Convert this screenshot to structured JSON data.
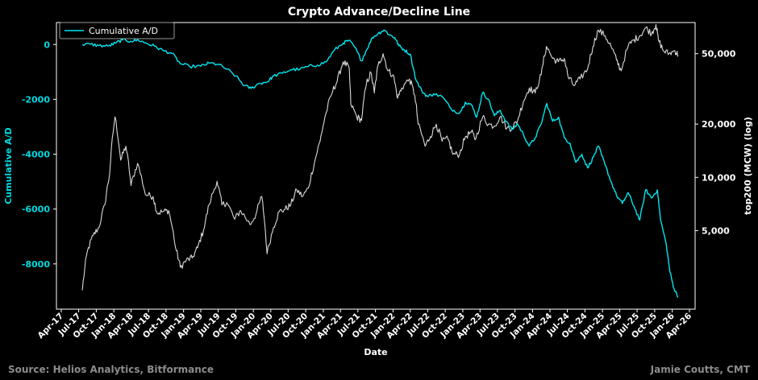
{
  "chart_data": {
    "type": "line",
    "title": "Crypto Advance/Decline Line",
    "xlabel": "Date",
    "ylabel_left": "Cumulative A/D",
    "ylabel_right": "top200 (MCW) (log)",
    "x_ticks": [
      "Apr-17",
      "Jul-17",
      "Oct-17",
      "Jan-18",
      "Apr-18",
      "Jul-18",
      "Oct-18",
      "Jan-19",
      "Apr-19",
      "Jul-19",
      "Oct-19",
      "Jan-20",
      "Apr-20",
      "Jul-20",
      "Oct-20",
      "Jan-21",
      "Apr-21",
      "Jul-21",
      "Oct-21",
      "Jan-22",
      "Apr-22",
      "Jul-22",
      "Oct-22",
      "Jan-23",
      "Apr-23",
      "Jul-23",
      "Oct-23",
      "Jan-24",
      "Apr-24",
      "Jul-24",
      "Oct-24",
      "Jan-25",
      "Apr-25",
      "Jul-25",
      "Oct-25",
      "Jan-26",
      "Apr-26"
    ],
    "y_left_ticks": [
      "0",
      "-2000",
      "-4000",
      "-6000",
      "-8000"
    ],
    "y_left_tick_values": [
      0,
      -2000,
      -4000,
      -6000,
      -8000
    ],
    "y_left_range": [
      -9650,
      800
    ],
    "y_right_ticks": [
      "50,000",
      "20,000",
      "10,000",
      "5,000"
    ],
    "y_right_tick_values": [
      50000,
      20000,
      10000,
      5000
    ],
    "y_right_range": [
      1800,
      75000
    ],
    "y_right_scale": "log",
    "grid": false,
    "legend": "top-left",
    "colors": {
      "background": "#000000",
      "ad_line": "#00e5ee",
      "index_line": "#d9d9d9",
      "left_axis_text": "#00d8e0",
      "text": "#ffffff",
      "footer": "#8c8c8c"
    },
    "series": [
      {
        "name": "Cumulative A/D",
        "axis": "left",
        "points": [
          [
            "2017-07-20",
            0
          ],
          [
            "2017-09-01",
            10
          ],
          [
            "2017-10-15",
            -40
          ],
          [
            "2017-12-01",
            -60
          ],
          [
            "2018-01-10",
            50
          ],
          [
            "2018-02-15",
            170
          ],
          [
            "2018-04-01",
            120
          ],
          [
            "2018-05-10",
            160
          ],
          [
            "2018-06-15",
            60
          ],
          [
            "2018-08-01",
            -60
          ],
          [
            "2018-09-15",
            -220
          ],
          [
            "2018-11-01",
            -320
          ],
          [
            "2018-12-15",
            -700
          ],
          [
            "2019-02-01",
            -800
          ],
          [
            "2019-04-01",
            -790
          ],
          [
            "2019-05-15",
            -680
          ],
          [
            "2019-07-01",
            -720
          ],
          [
            "2019-08-15",
            -900
          ],
          [
            "2019-10-01",
            -1150
          ],
          [
            "2019-11-15",
            -1500
          ],
          [
            "2019-12-20",
            -1600
          ],
          [
            "2020-02-01",
            -1420
          ],
          [
            "2020-03-15",
            -1360
          ],
          [
            "2020-04-15",
            -1150
          ],
          [
            "2020-06-01",
            -1050
          ],
          [
            "2020-07-15",
            -920
          ],
          [
            "2020-09-01",
            -900
          ],
          [
            "2020-10-15",
            -800
          ],
          [
            "2020-12-01",
            -750
          ],
          [
            "2021-01-15",
            -640
          ],
          [
            "2021-03-01",
            -200
          ],
          [
            "2021-04-15",
            50
          ],
          [
            "2021-05-15",
            150
          ],
          [
            "2021-06-15",
            -100
          ],
          [
            "2021-07-20",
            -600
          ],
          [
            "2021-08-15",
            -200
          ],
          [
            "2021-09-15",
            250
          ],
          [
            "2021-10-15",
            400
          ],
          [
            "2021-11-15",
            530
          ],
          [
            "2021-12-15",
            350
          ],
          [
            "2022-01-10",
            250
          ],
          [
            "2022-02-01",
            -50
          ],
          [
            "2022-03-01",
            -200
          ],
          [
            "2022-04-01",
            -350
          ],
          [
            "2022-05-01",
            -1300
          ],
          [
            "2022-06-01",
            -1700
          ],
          [
            "2022-07-01",
            -1900
          ],
          [
            "2022-08-01",
            -1800
          ],
          [
            "2022-09-15",
            -1900
          ],
          [
            "2022-11-01",
            -2350
          ],
          [
            "2022-12-15",
            -2500
          ],
          [
            "2023-01-15",
            -2100
          ],
          [
            "2023-02-15",
            -2200
          ],
          [
            "2023-03-15",
            -2650
          ],
          [
            "2023-04-15",
            -1750
          ],
          [
            "2023-05-15",
            -2000
          ],
          [
            "2023-06-15",
            -2600
          ],
          [
            "2023-07-15",
            -2400
          ],
          [
            "2023-08-15",
            -2800
          ],
          [
            "2023-09-15",
            -3100
          ],
          [
            "2023-10-15",
            -2900
          ],
          [
            "2023-11-15",
            -3300
          ],
          [
            "2023-12-15",
            -3700
          ],
          [
            "2024-01-15",
            -3400
          ],
          [
            "2024-02-15",
            -2900
          ],
          [
            "2024-03-15",
            -2150
          ],
          [
            "2024-04-15",
            -2800
          ],
          [
            "2024-05-15",
            -2650
          ],
          [
            "2024-06-15",
            -3400
          ],
          [
            "2024-07-15",
            -3600
          ],
          [
            "2024-08-15",
            -4300
          ],
          [
            "2024-09-15",
            -4000
          ],
          [
            "2024-10-15",
            -4500
          ],
          [
            "2024-11-15",
            -4100
          ],
          [
            "2024-12-10",
            -3700
          ],
          [
            "2025-01-15",
            -4400
          ],
          [
            "2025-02-15",
            -5000
          ],
          [
            "2025-03-15",
            -5500
          ],
          [
            "2025-04-15",
            -5800
          ],
          [
            "2025-05-15",
            -5400
          ],
          [
            "2025-06-15",
            -5900
          ],
          [
            "2025-07-15",
            -6400
          ],
          [
            "2025-08-15",
            -5300
          ],
          [
            "2025-09-15",
            -5600
          ],
          [
            "2025-10-15",
            -5300
          ],
          [
            "2025-11-01",
            -6400
          ],
          [
            "2025-12-01",
            -7300
          ],
          [
            "2025-12-20",
            -8300
          ],
          [
            "2026-01-10",
            -8900
          ],
          [
            "2026-02-01",
            -9200
          ]
        ]
      },
      {
        "axis": "right",
        "points": [
          [
            "2017-07-20",
            2300
          ],
          [
            "2017-08-15",
            3800
          ],
          [
            "2017-09-15",
            4700
          ],
          [
            "2017-10-15",
            5200
          ],
          [
            "2017-11-15",
            7000
          ],
          [
            "2017-12-10",
            10500
          ],
          [
            "2018-01-07",
            22000
          ],
          [
            "2018-02-06",
            12500
          ],
          [
            "2018-03-05",
            15000
          ],
          [
            "2018-04-01",
            9000
          ],
          [
            "2018-05-05",
            12000
          ],
          [
            "2018-06-15",
            8000
          ],
          [
            "2018-07-25",
            7800
          ],
          [
            "2018-08-15",
            6300
          ],
          [
            "2018-09-15",
            6400
          ],
          [
            "2018-10-15",
            6500
          ],
          [
            "2018-11-20",
            4000
          ],
          [
            "2018-12-15",
            3100
          ],
          [
            "2019-01-15",
            3400
          ],
          [
            "2019-02-15",
            3500
          ],
          [
            "2019-03-15",
            4000
          ],
          [
            "2019-04-15",
            5000
          ],
          [
            "2019-05-15",
            7000
          ],
          [
            "2019-06-25",
            9500
          ],
          [
            "2019-07-20",
            7000
          ],
          [
            "2019-08-15",
            7200
          ],
          [
            "2019-09-25",
            5800
          ],
          [
            "2019-10-26",
            6500
          ],
          [
            "2019-12-15",
            5400
          ],
          [
            "2020-01-15",
            6200
          ],
          [
            "2020-02-14",
            7800
          ],
          [
            "2020-03-13",
            3700
          ],
          [
            "2020-04-15",
            5200
          ],
          [
            "2020-05-15",
            6400
          ],
          [
            "2020-06-15",
            6600
          ],
          [
            "2020-07-15",
            7000
          ],
          [
            "2020-08-15",
            8500
          ],
          [
            "2020-09-15",
            7800
          ],
          [
            "2020-10-15",
            8700
          ],
          [
            "2020-11-15",
            12000
          ],
          [
            "2020-12-15",
            16000
          ],
          [
            "2021-01-15",
            23000
          ],
          [
            "2021-02-20",
            31000
          ],
          [
            "2021-03-15",
            35000
          ],
          [
            "2021-04-15",
            45000
          ],
          [
            "2021-05-15",
            42000
          ],
          [
            "2021-05-25",
            26000
          ],
          [
            "2021-06-25",
            22000
          ],
          [
            "2021-07-20",
            21000
          ],
          [
            "2021-08-15",
            34000
          ],
          [
            "2021-09-07",
            39000
          ],
          [
            "2021-09-25",
            30000
          ],
          [
            "2021-10-15",
            43000
          ],
          [
            "2021-11-10",
            50000
          ],
          [
            "2021-12-05",
            40000
          ],
          [
            "2022-01-01",
            38000
          ],
          [
            "2022-01-25",
            28000
          ],
          [
            "2022-02-15",
            32000
          ],
          [
            "2022-03-28",
            36000
          ],
          [
            "2022-04-25",
            29000
          ],
          [
            "2022-05-12",
            20000
          ],
          [
            "2022-06-18",
            15000
          ],
          [
            "2022-07-15",
            17000
          ],
          [
            "2022-08-15",
            20000
          ],
          [
            "2022-09-15",
            16000
          ],
          [
            "2022-10-15",
            16500
          ],
          [
            "2022-11-10",
            13500
          ],
          [
            "2022-12-15",
            13500
          ],
          [
            "2023-01-15",
            17000
          ],
          [
            "2023-02-15",
            18000
          ],
          [
            "2023-03-10",
            16500
          ],
          [
            "2023-04-15",
            22000
          ],
          [
            "2023-05-15",
            20000
          ],
          [
            "2023-06-15",
            19500
          ],
          [
            "2023-07-15",
            22000
          ],
          [
            "2023-08-20",
            19000
          ],
          [
            "2023-09-15",
            19000
          ],
          [
            "2023-10-15",
            21000
          ],
          [
            "2023-11-15",
            27000
          ],
          [
            "2023-12-15",
            32000
          ],
          [
            "2024-01-15",
            30000
          ],
          [
            "2024-02-15",
            38000
          ],
          [
            "2024-03-14",
            55000
          ],
          [
            "2024-04-15",
            47000
          ],
          [
            "2024-05-15",
            45000
          ],
          [
            "2024-06-15",
            47000
          ],
          [
            "2024-07-05",
            37000
          ],
          [
            "2024-08-05",
            33000
          ],
          [
            "2024-09-06",
            36000
          ],
          [
            "2024-10-15",
            41000
          ],
          [
            "2024-11-12",
            55000
          ],
          [
            "2024-12-10",
            68000
          ],
          [
            "2025-01-15",
            63000
          ],
          [
            "2025-02-15",
            55000
          ],
          [
            "2025-03-15",
            46000
          ],
          [
            "2025-04-08",
            40000
          ],
          [
            "2025-05-15",
            55000
          ],
          [
            "2025-06-15",
            60000
          ],
          [
            "2025-07-15",
            63000
          ],
          [
            "2025-08-15",
            70000
          ],
          [
            "2025-09-15",
            65000
          ],
          [
            "2025-10-08",
            73000
          ],
          [
            "2025-10-20",
            60000
          ],
          [
            "2025-11-15",
            52000
          ],
          [
            "2025-12-15",
            50000
          ],
          [
            "2026-01-15",
            52000
          ],
          [
            "2026-02-01",
            49000
          ]
        ]
      }
    ]
  },
  "footer": {
    "source": "Source: Helios Analytics, Bitformance",
    "author": "Jamie Coutts, CMT"
  }
}
